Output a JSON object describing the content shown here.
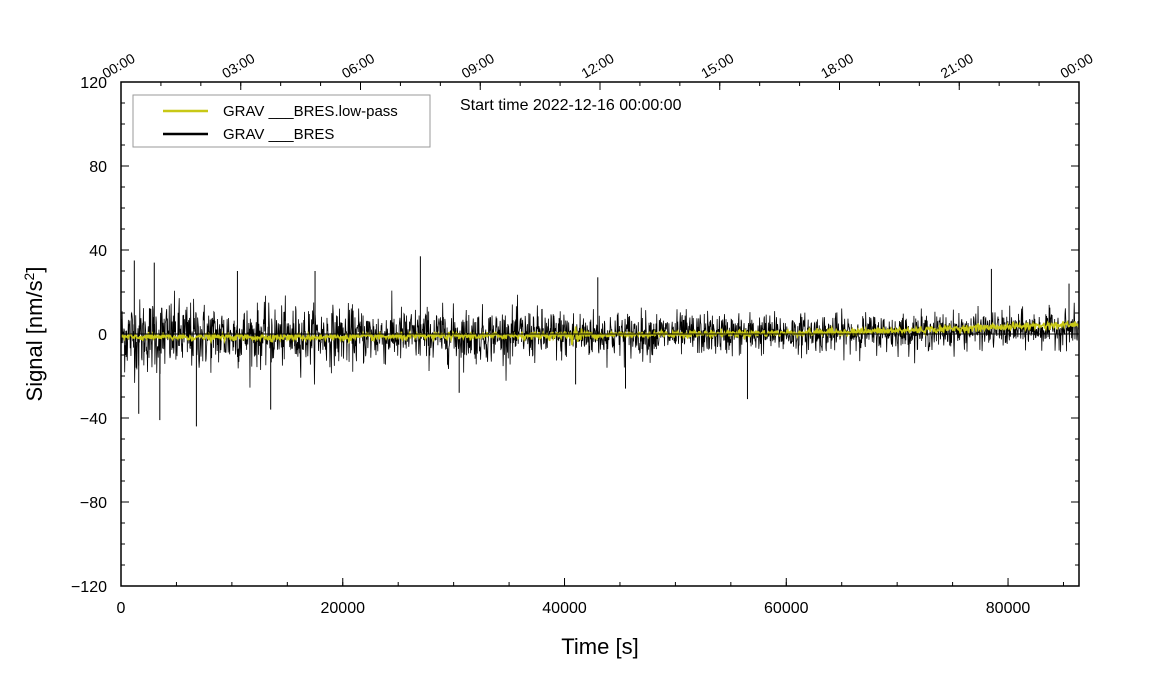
{
  "chart_data": {
    "type": "line",
    "annotation": "Start time 2022-12-16 00:00:00",
    "xlabel": "Time [s]",
    "ylabel_main": "Signal [nm/s",
    "ylabel_sup": "2",
    "ylabel_close": "]",
    "xlim": [
      0,
      86400
    ],
    "ylim": [
      -120,
      120
    ],
    "x_ticks": [
      {
        "value": 0,
        "label": "0"
      },
      {
        "value": 20000,
        "label": "20000"
      },
      {
        "value": 40000,
        "label": "40000"
      },
      {
        "value": 60000,
        "label": "60000"
      },
      {
        "value": 80000,
        "label": "80000"
      }
    ],
    "x_minor_step": 5000,
    "y_ticks": [
      {
        "value": -120,
        "label": "−120"
      },
      {
        "value": -80,
        "label": "−80"
      },
      {
        "value": -40,
        "label": "−40"
      },
      {
        "value": 0,
        "label": "0"
      },
      {
        "value": 40,
        "label": "40"
      },
      {
        "value": 80,
        "label": "80"
      },
      {
        "value": 120,
        "label": "120"
      }
    ],
    "y_minor_step": 10,
    "top_ticks": [
      {
        "value": 0,
        "label": "00:00"
      },
      {
        "value": 10800,
        "label": "03:00"
      },
      {
        "value": 21600,
        "label": "06:00"
      },
      {
        "value": 32400,
        "label": "09:00"
      },
      {
        "value": 43200,
        "label": "12:00"
      },
      {
        "value": 54000,
        "label": "15:00"
      },
      {
        "value": 64800,
        "label": "18:00"
      },
      {
        "value": 75600,
        "label": "21:00"
      },
      {
        "value": 86400,
        "label": "00:00"
      }
    ],
    "top_minor_step": 3600,
    "zero_line": true,
    "grid": false,
    "legend_position": "top-left",
    "series": [
      {
        "name": "GRAV ___BRES",
        "color": "#000000",
        "noise_envelope": [
          {
            "x": 0,
            "amp": 20
          },
          {
            "x": 4000,
            "amp": 21
          },
          {
            "x": 10000,
            "amp": 17
          },
          {
            "x": 20000,
            "amp": 16
          },
          {
            "x": 30000,
            "amp": 15
          },
          {
            "x": 40000,
            "amp": 14
          },
          {
            "x": 50000,
            "amp": 12
          },
          {
            "x": 60000,
            "amp": 11
          },
          {
            "x": 70000,
            "amp": 10
          },
          {
            "x": 80000,
            "amp": 10
          },
          {
            "x": 86400,
            "amp": 10
          }
        ],
        "spikes": [
          {
            "x": 1200,
            "y": 35
          },
          {
            "x": 1600,
            "y": -38
          },
          {
            "x": 3000,
            "y": 34
          },
          {
            "x": 3500,
            "y": -41
          },
          {
            "x": 6800,
            "y": -44
          },
          {
            "x": 10500,
            "y": 30
          },
          {
            "x": 13500,
            "y": -36
          },
          {
            "x": 17500,
            "y": 30
          },
          {
            "x": 27000,
            "y": 37
          },
          {
            "x": 30500,
            "y": -28
          },
          {
            "x": 41000,
            "y": -24
          },
          {
            "x": 43000,
            "y": 27
          },
          {
            "x": 45500,
            "y": -26
          },
          {
            "x": 56500,
            "y": -31
          },
          {
            "x": 78500,
            "y": 31
          },
          {
            "x": 85500,
            "y": 24
          }
        ]
      },
      {
        "name": "GRAV ___BRES.low-pass",
        "color": "#c8c816",
        "trend": [
          {
            "x": 0,
            "y": -1.5
          },
          {
            "x": 10000,
            "y": -1.5
          },
          {
            "x": 20000,
            "y": -1.5
          },
          {
            "x": 30000,
            "y": -1
          },
          {
            "x": 40000,
            "y": -0.5
          },
          {
            "x": 50000,
            "y": 0
          },
          {
            "x": 60000,
            "y": 0.5
          },
          {
            "x": 70000,
            "y": 1.5
          },
          {
            "x": 80000,
            "y": 3.5
          },
          {
            "x": 86400,
            "y": 4.5
          }
        ],
        "ripple_amp": 1.5,
        "bursts": [
          {
            "x": 41000,
            "amp": 3
          }
        ]
      }
    ]
  }
}
